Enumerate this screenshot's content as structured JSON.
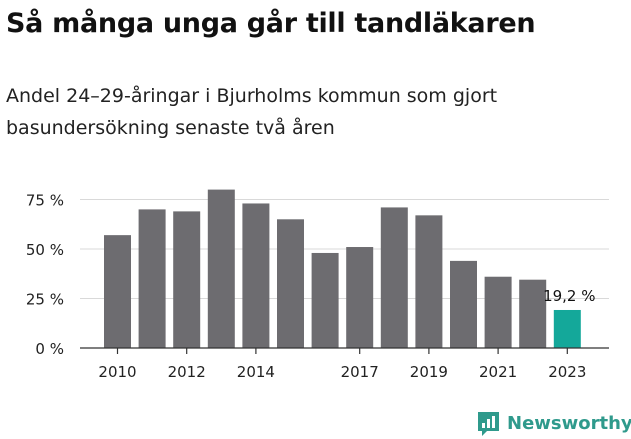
{
  "title": "Så många unga går till tandläkaren",
  "subtitle": "Andel 24–29-åringar i Bjurholms kommun som gjort basundersökning senaste två åren",
  "brand": {
    "name": "Newsworthy",
    "icon": "newsworthy-logo-icon"
  },
  "colors": {
    "bar": "#6d6c70",
    "highlight": "#14a89a",
    "grid": "#d9d9d9",
    "axis": "#333333",
    "brand": "#2f9a8c"
  },
  "chart_data": {
    "type": "bar",
    "x": [
      2010,
      2011,
      2012,
      2013,
      2014,
      2015,
      2016,
      2017,
      2018,
      2019,
      2020,
      2021,
      2022,
      2023
    ],
    "values": [
      57,
      70,
      69,
      80,
      73,
      65,
      48,
      51,
      71,
      67,
      44,
      36,
      34.5,
      19.2
    ],
    "highlight_index": 13,
    "data_label": "19,2 %",
    "y_ticks": [
      "0 %",
      "25 %",
      "50 %",
      "75 %"
    ],
    "y_tick_values": [
      0,
      25,
      50,
      75
    ],
    "x_tick_labels": [
      "2010",
      "2012",
      "2014",
      "2017",
      "2019",
      "2021",
      "2023"
    ],
    "x_tick_years": [
      2010,
      2012,
      2014,
      2017,
      2019,
      2021,
      2023
    ],
    "ylim": [
      0,
      80
    ],
    "grid": true,
    "legend": "none"
  }
}
